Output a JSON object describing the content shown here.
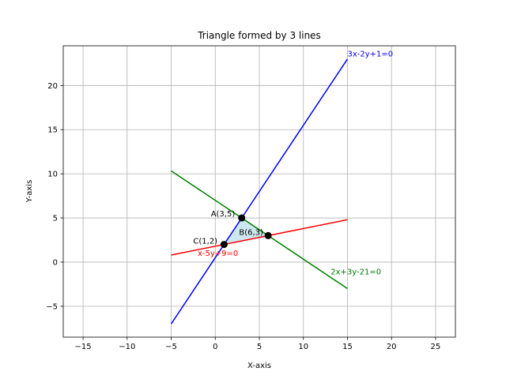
{
  "chart_data": {
    "type": "line",
    "title": "Triangle formed by 3 lines",
    "xlabel": "X-axis",
    "ylabel": "Y-axis",
    "xlim": [
      -17.25,
      27.25
    ],
    "ylim": [
      -8.5,
      24.5
    ],
    "xticks": [
      -15,
      -10,
      -5,
      0,
      5,
      10,
      15,
      20,
      25
    ],
    "yticks": [
      -5,
      0,
      5,
      10,
      15,
      20
    ],
    "xtick_labels": [
      "−15",
      "−10",
      "−5",
      "0",
      "5",
      "10",
      "15",
      "20",
      "25"
    ],
    "ytick_labels": [
      "−5",
      "0",
      "5",
      "10",
      "15",
      "20"
    ],
    "grid": true,
    "series": [
      {
        "name": "3x-2y+1=0",
        "color": "#0000ff",
        "x": [
          -5,
          15
        ],
        "y": [
          -7,
          23
        ],
        "label_at": [
          15,
          23.3
        ]
      },
      {
        "name": "2x+3y-21=0",
        "color": "#008000",
        "x": [
          -5,
          15
        ],
        "y": [
          10.33,
          -3
        ],
        "label_at": [
          13.1,
          -1.4
        ]
      },
      {
        "name": "x-5y+9=0",
        "color": "#ff0000",
        "x": [
          -5,
          15
        ],
        "y": [
          0.8,
          4.8
        ],
        "label_at": [
          -2,
          0.7
        ]
      }
    ],
    "triangle": {
      "fill": "#add8e6",
      "vertices": [
        [
          3,
          5
        ],
        [
          6,
          3
        ],
        [
          1,
          2
        ]
      ]
    },
    "points": [
      {
        "label": "A(3,5)",
        "x": 3,
        "y": 5,
        "label_at": [
          -0.5,
          5.2
        ]
      },
      {
        "label": "B(6,3)",
        "x": 6,
        "y": 3,
        "label_at": [
          2.7,
          3.1
        ]
      },
      {
        "label": "C(1,2)",
        "x": 1,
        "y": 2,
        "label_at": [
          -2.5,
          2.1
        ]
      }
    ]
  }
}
